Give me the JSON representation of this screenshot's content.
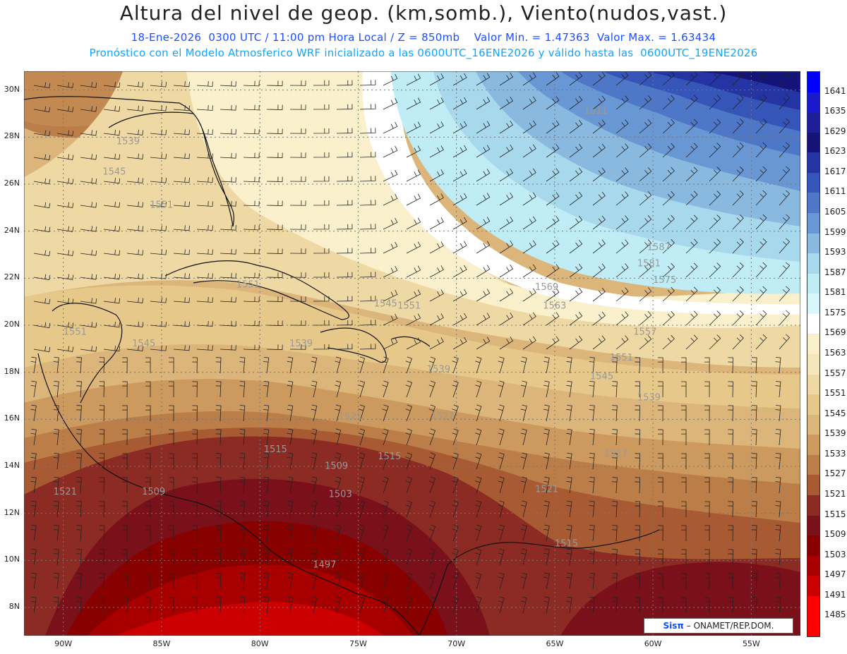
{
  "header": {
    "title": "Altura del nivel de geop. (km,somb.), Viento(nudos,vast.)",
    "subtitle1": "18-Ene-2026  0300 UTC / 11:00 pm Hora Local / Z = 850mb    Valor Min. = 1.47363  Valor Max. = 1.63434",
    "subtitle2": "Pronóstico con el Modelo Atmosferico WRF inicializado a las 0600UTC_16ENE2026 y válido hasta las  0600UTC_19ENE2026"
  },
  "map": {
    "lat_labels": [
      "30N",
      "28N",
      "26N",
      "24N",
      "22N",
      "20N",
      "18N",
      "16N",
      "14N",
      "12N",
      "10N",
      "8N"
    ],
    "lat_values": [
      30,
      28,
      26,
      24,
      22,
      20,
      18,
      16,
      14,
      12,
      10,
      8
    ],
    "lon_labels": [
      "90W",
      "85W",
      "80W",
      "75W",
      "70W",
      "65W",
      "60W",
      "55W"
    ],
    "lon_values": [
      -90,
      -85,
      -80,
      -75,
      -70,
      -65,
      -60,
      -55
    ],
    "lat_range": [
      6.8,
      30.8
    ],
    "lon_range": [
      -92,
      -52.5
    ],
    "contour_labels": [
      {
        "text": "1611",
        "lon": -63.5,
        "lat": 29.0
      },
      {
        "text": "1539",
        "lon": -87.3,
        "lat": 27.7
      },
      {
        "text": "1545",
        "lon": -88.0,
        "lat": 26.4
      },
      {
        "text": "1551",
        "lon": -85.6,
        "lat": 25.0
      },
      {
        "text": "1587",
        "lon": -60.3,
        "lat": 23.2
      },
      {
        "text": "1581",
        "lon": -60.8,
        "lat": 22.5
      },
      {
        "text": "1575",
        "lon": -60.0,
        "lat": 21.8
      },
      {
        "text": "1569",
        "lon": -66.0,
        "lat": 21.5
      },
      {
        "text": "1563",
        "lon": -65.6,
        "lat": 20.7
      },
      {
        "text": "1551",
        "lon": -81.2,
        "lat": 21.6
      },
      {
        "text": "1551",
        "lon": -73.0,
        "lat": 20.7
      },
      {
        "text": "1545",
        "lon": -74.2,
        "lat": 20.8
      },
      {
        "text": "1551",
        "lon": -90.0,
        "lat": 19.6
      },
      {
        "text": "1545",
        "lon": -86.5,
        "lat": 19.1
      },
      {
        "text": "1539",
        "lon": -78.5,
        "lat": 19.1
      },
      {
        "text": "1539",
        "lon": -71.5,
        "lat": 18.0
      },
      {
        "text": "1557",
        "lon": -61.0,
        "lat": 19.6
      },
      {
        "text": "1551",
        "lon": -62.2,
        "lat": 18.5
      },
      {
        "text": "1545",
        "lon": -63.2,
        "lat": 17.7
      },
      {
        "text": "1539",
        "lon": -60.8,
        "lat": 16.8
      },
      {
        "text": "1521",
        "lon": -76.0,
        "lat": 16.0
      },
      {
        "text": "1527",
        "lon": -71.3,
        "lat": 16.0
      },
      {
        "text": "1515",
        "lon": -79.8,
        "lat": 14.6
      },
      {
        "text": "1515",
        "lon": -74.0,
        "lat": 14.3
      },
      {
        "text": "1509",
        "lon": -76.7,
        "lat": 13.9
      },
      {
        "text": "1527",
        "lon": -62.5,
        "lat": 14.4
      },
      {
        "text": "1521",
        "lon": -90.5,
        "lat": 12.8
      },
      {
        "text": "1509",
        "lon": -86.0,
        "lat": 12.8
      },
      {
        "text": "1503",
        "lon": -76.5,
        "lat": 12.7
      },
      {
        "text": "1521",
        "lon": -66.0,
        "lat": 12.9
      },
      {
        "text": "1515",
        "lon": -65.0,
        "lat": 10.6
      },
      {
        "text": "1497",
        "lon": -77.3,
        "lat": 9.7
      }
    ],
    "credit_brand": "Sisπ",
    "credit_text": "– ONAMET/REP.DOM."
  },
  "colorbar": {
    "labels": [
      "1641",
      "1635",
      "1629",
      "1623",
      "1617",
      "1611",
      "1605",
      "1599",
      "1593",
      "1587",
      "1581",
      "1575",
      "1569",
      "1563",
      "1557",
      "1551",
      "1545",
      "1539",
      "1533",
      "1527",
      "1521",
      "1515",
      "1509",
      "1503",
      "1497",
      "1491",
      "1485"
    ],
    "colors": [
      "#0000ff",
      "#1a1acc",
      "#1e1e99",
      "#141478",
      "#2434a2",
      "#3655b8",
      "#4f77c8",
      "#6897d4",
      "#8ab9e0",
      "#a8d8ec",
      "#c0ecf6",
      "#d8f6fb",
      "#ffffff",
      "#fbf0cc",
      "#f6e6bb",
      "#eed9a4",
      "#e6c88a",
      "#dcb57a",
      "#cc9a5e",
      "#bb7e48",
      "#a85a33",
      "#8c2a24",
      "#7a101a",
      "#880000",
      "#a80000",
      "#cc0000",
      "#ff0000"
    ]
  }
}
